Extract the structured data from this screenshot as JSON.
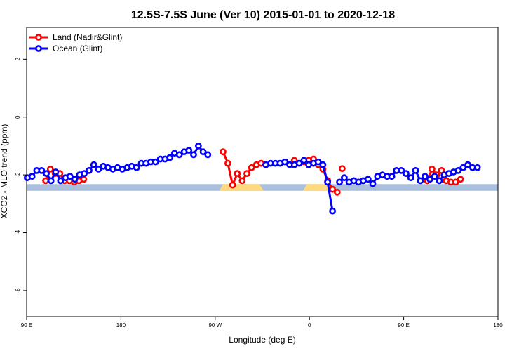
{
  "chart_data": {
    "type": "line",
    "title": "12.5S-7.5S June (Ver 10)   2015-01-01 to 2020-12-18",
    "xlabel": "Longitude (deg E)",
    "ylabel": "XCO2 - MLO trend (ppm)",
    "xlim": [
      90,
      450
    ],
    "ylim": [
      -6.9,
      3.1
    ],
    "x_ticks": [
      {
        "value": 90,
        "label": "90 E"
      },
      {
        "value": 162,
        "label": "180"
      },
      {
        "value": 234,
        "label": "90 W"
      },
      {
        "value": 306,
        "label": "0"
      },
      {
        "value": 378,
        "label": "90 E"
      },
      {
        "value": 450,
        "label": "180"
      }
    ],
    "y_ticks": [
      {
        "value": -6,
        "label": "-6"
      },
      {
        "value": -4,
        "label": "-4"
      },
      {
        "value": -2,
        "label": "-2"
      },
      {
        "value": 0,
        "label": "0"
      },
      {
        "value": 2,
        "label": "2"
      }
    ],
    "legend": {
      "position": "top-left",
      "entries": [
        {
          "label": "Land (Nadir&Glint)",
          "color": "#ff0000"
        },
        {
          "label": "Ocean (Glint)",
          "color": "#0000ff"
        }
      ]
    },
    "surface_band": {
      "y_range": [
        -2.55,
        -2.32
      ],
      "ocean_color": "#a9bfdc",
      "land_color": "#ffd980",
      "land_segments": [
        [
          237,
          271
        ],
        [
          301,
          324
        ]
      ]
    },
    "series": [
      {
        "name": "Land (Nadir&Glint)",
        "color": "#ff0000",
        "segments": [
          [
            [
              104.5,
              -2.2
            ],
            [
              108.1,
              -1.8
            ],
            [
              111.8,
              -1.95
            ],
            [
              115.4,
              -1.95
            ],
            [
              119.0,
              -2.2
            ],
            [
              122.7,
              -2.2
            ],
            [
              126.3,
              -2.25
            ],
            [
              129.9,
              -2.2
            ],
            [
              133.6,
              -2.15
            ]
          ],
          [
            [
              240.0,
              -1.2
            ],
            [
              243.7,
              -1.6
            ],
            [
              247.3,
              -2.35
            ],
            [
              250.9,
              -1.95
            ],
            [
              254.6,
              -2.2
            ],
            [
              258.2,
              -1.95
            ],
            [
              261.8,
              -1.75
            ],
            [
              265.5,
              -1.65
            ],
            [
              269.1,
              -1.6
            ]
          ],
          [
            [
              294.5,
              -1.5
            ],
            [
              298.2,
              -1.6
            ],
            [
              301.8,
              -1.55
            ],
            [
              305.4,
              -1.5
            ],
            [
              309.1,
              -1.45
            ],
            [
              312.7,
              -1.65
            ],
            [
              316.3,
              -1.8
            ],
            [
              320.0,
              -2.2
            ],
            [
              323.6,
              -2.5
            ],
            [
              327.2,
              -2.6
            ]
          ],
          [
            [
              331.0,
              -1.78
            ]
          ],
          [
            [
              396.0,
              -2.2
            ],
            [
              399.6,
              -1.8
            ],
            [
              403.2,
              -2.0
            ],
            [
              406.9,
              -1.85
            ],
            [
              410.5,
              -2.2
            ],
            [
              414.1,
              -2.25
            ],
            [
              417.7,
              -2.25
            ],
            [
              421.4,
              -2.15
            ]
          ]
        ]
      },
      {
        "name": "Ocean (Glint)",
        "color": "#0000ff",
        "segments": [
          [
            [
              90.5,
              -2.1
            ],
            [
              94.1,
              -2.05
            ],
            [
              97.7,
              -1.85
            ],
            [
              101.4,
              -1.85
            ],
            [
              105.0,
              -1.95
            ],
            [
              108.6,
              -2.2
            ],
            [
              112.2,
              -1.9
            ],
            [
              115.9,
              -2.2
            ],
            [
              119.5,
              -2.1
            ],
            [
              123.1,
              -2.05
            ],
            [
              126.8,
              -2.15
            ],
            [
              130.4,
              -2.0
            ],
            [
              134.0,
              -1.95
            ],
            [
              137.7,
              -1.85
            ],
            [
              141.3,
              -1.65
            ],
            [
              144.9,
              -1.8
            ],
            [
              148.6,
              -1.7
            ],
            [
              152.2,
              -1.75
            ],
            [
              155.8,
              -1.8
            ],
            [
              159.4,
              -1.75
            ],
            [
              163.1,
              -1.8
            ],
            [
              166.7,
              -1.75
            ],
            [
              170.3,
              -1.7
            ],
            [
              174.0,
              -1.75
            ],
            [
              177.6,
              -1.6
            ],
            [
              181.2,
              -1.6
            ],
            [
              184.9,
              -1.55
            ],
            [
              188.5,
              -1.55
            ],
            [
              192.1,
              -1.45
            ],
            [
              195.7,
              -1.45
            ],
            [
              199.4,
              -1.4
            ],
            [
              203.0,
              -1.25
            ],
            [
              206.6,
              -1.3
            ],
            [
              210.3,
              -1.2
            ],
            [
              213.9,
              -1.15
            ],
            [
              217.5,
              -1.3
            ],
            [
              221.2,
              -1.0
            ],
            [
              224.8,
              -1.2
            ],
            [
              228.4,
              -1.3
            ]
          ],
          [
            [
              272.7,
              -1.65
            ],
            [
              276.4,
              -1.6
            ],
            [
              280.0,
              -1.6
            ],
            [
              283.6,
              -1.6
            ],
            [
              287.3,
              -1.55
            ],
            [
              290.9,
              -1.65
            ],
            [
              294.5,
              -1.65
            ],
            [
              298.2,
              -1.6
            ],
            [
              301.8,
              -1.5
            ],
            [
              305.4,
              -1.65
            ],
            [
              309.1,
              -1.6
            ],
            [
              312.7,
              -1.55
            ],
            [
              316.3,
              -1.65
            ],
            [
              319.9,
              -2.25
            ],
            [
              323.6,
              -3.25
            ]
          ],
          [
            [
              329.0,
              -2.25
            ],
            [
              332.6,
              -2.1
            ],
            [
              336.2,
              -2.25
            ],
            [
              339.9,
              -2.2
            ],
            [
              343.5,
              -2.25
            ],
            [
              347.1,
              -2.2
            ],
            [
              350.8,
              -2.15
            ],
            [
              354.4,
              -2.3
            ],
            [
              358.0,
              -2.05
            ],
            [
              361.7,
              -2.0
            ],
            [
              365.3,
              -2.05
            ],
            [
              368.9,
              -2.05
            ],
            [
              372.5,
              -1.85
            ],
            [
              376.2,
              -1.85
            ],
            [
              379.8,
              -1.95
            ],
            [
              383.4,
              -2.1
            ],
            [
              387.1,
              -1.85
            ],
            [
              390.7,
              -2.2
            ],
            [
              394.3,
              -2.05
            ],
            [
              398.0,
              -2.15
            ],
            [
              401.6,
              -2.05
            ],
            [
              405.2,
              -2.2
            ],
            [
              408.9,
              -2.0
            ],
            [
              412.5,
              -1.95
            ],
            [
              416.1,
              -1.9
            ],
            [
              419.7,
              -1.85
            ],
            [
              423.4,
              -1.75
            ],
            [
              427.0,
              -1.65
            ],
            [
              430.6,
              -1.75
            ],
            [
              434.3,
              -1.75
            ]
          ]
        ]
      }
    ],
    "grid": false
  }
}
